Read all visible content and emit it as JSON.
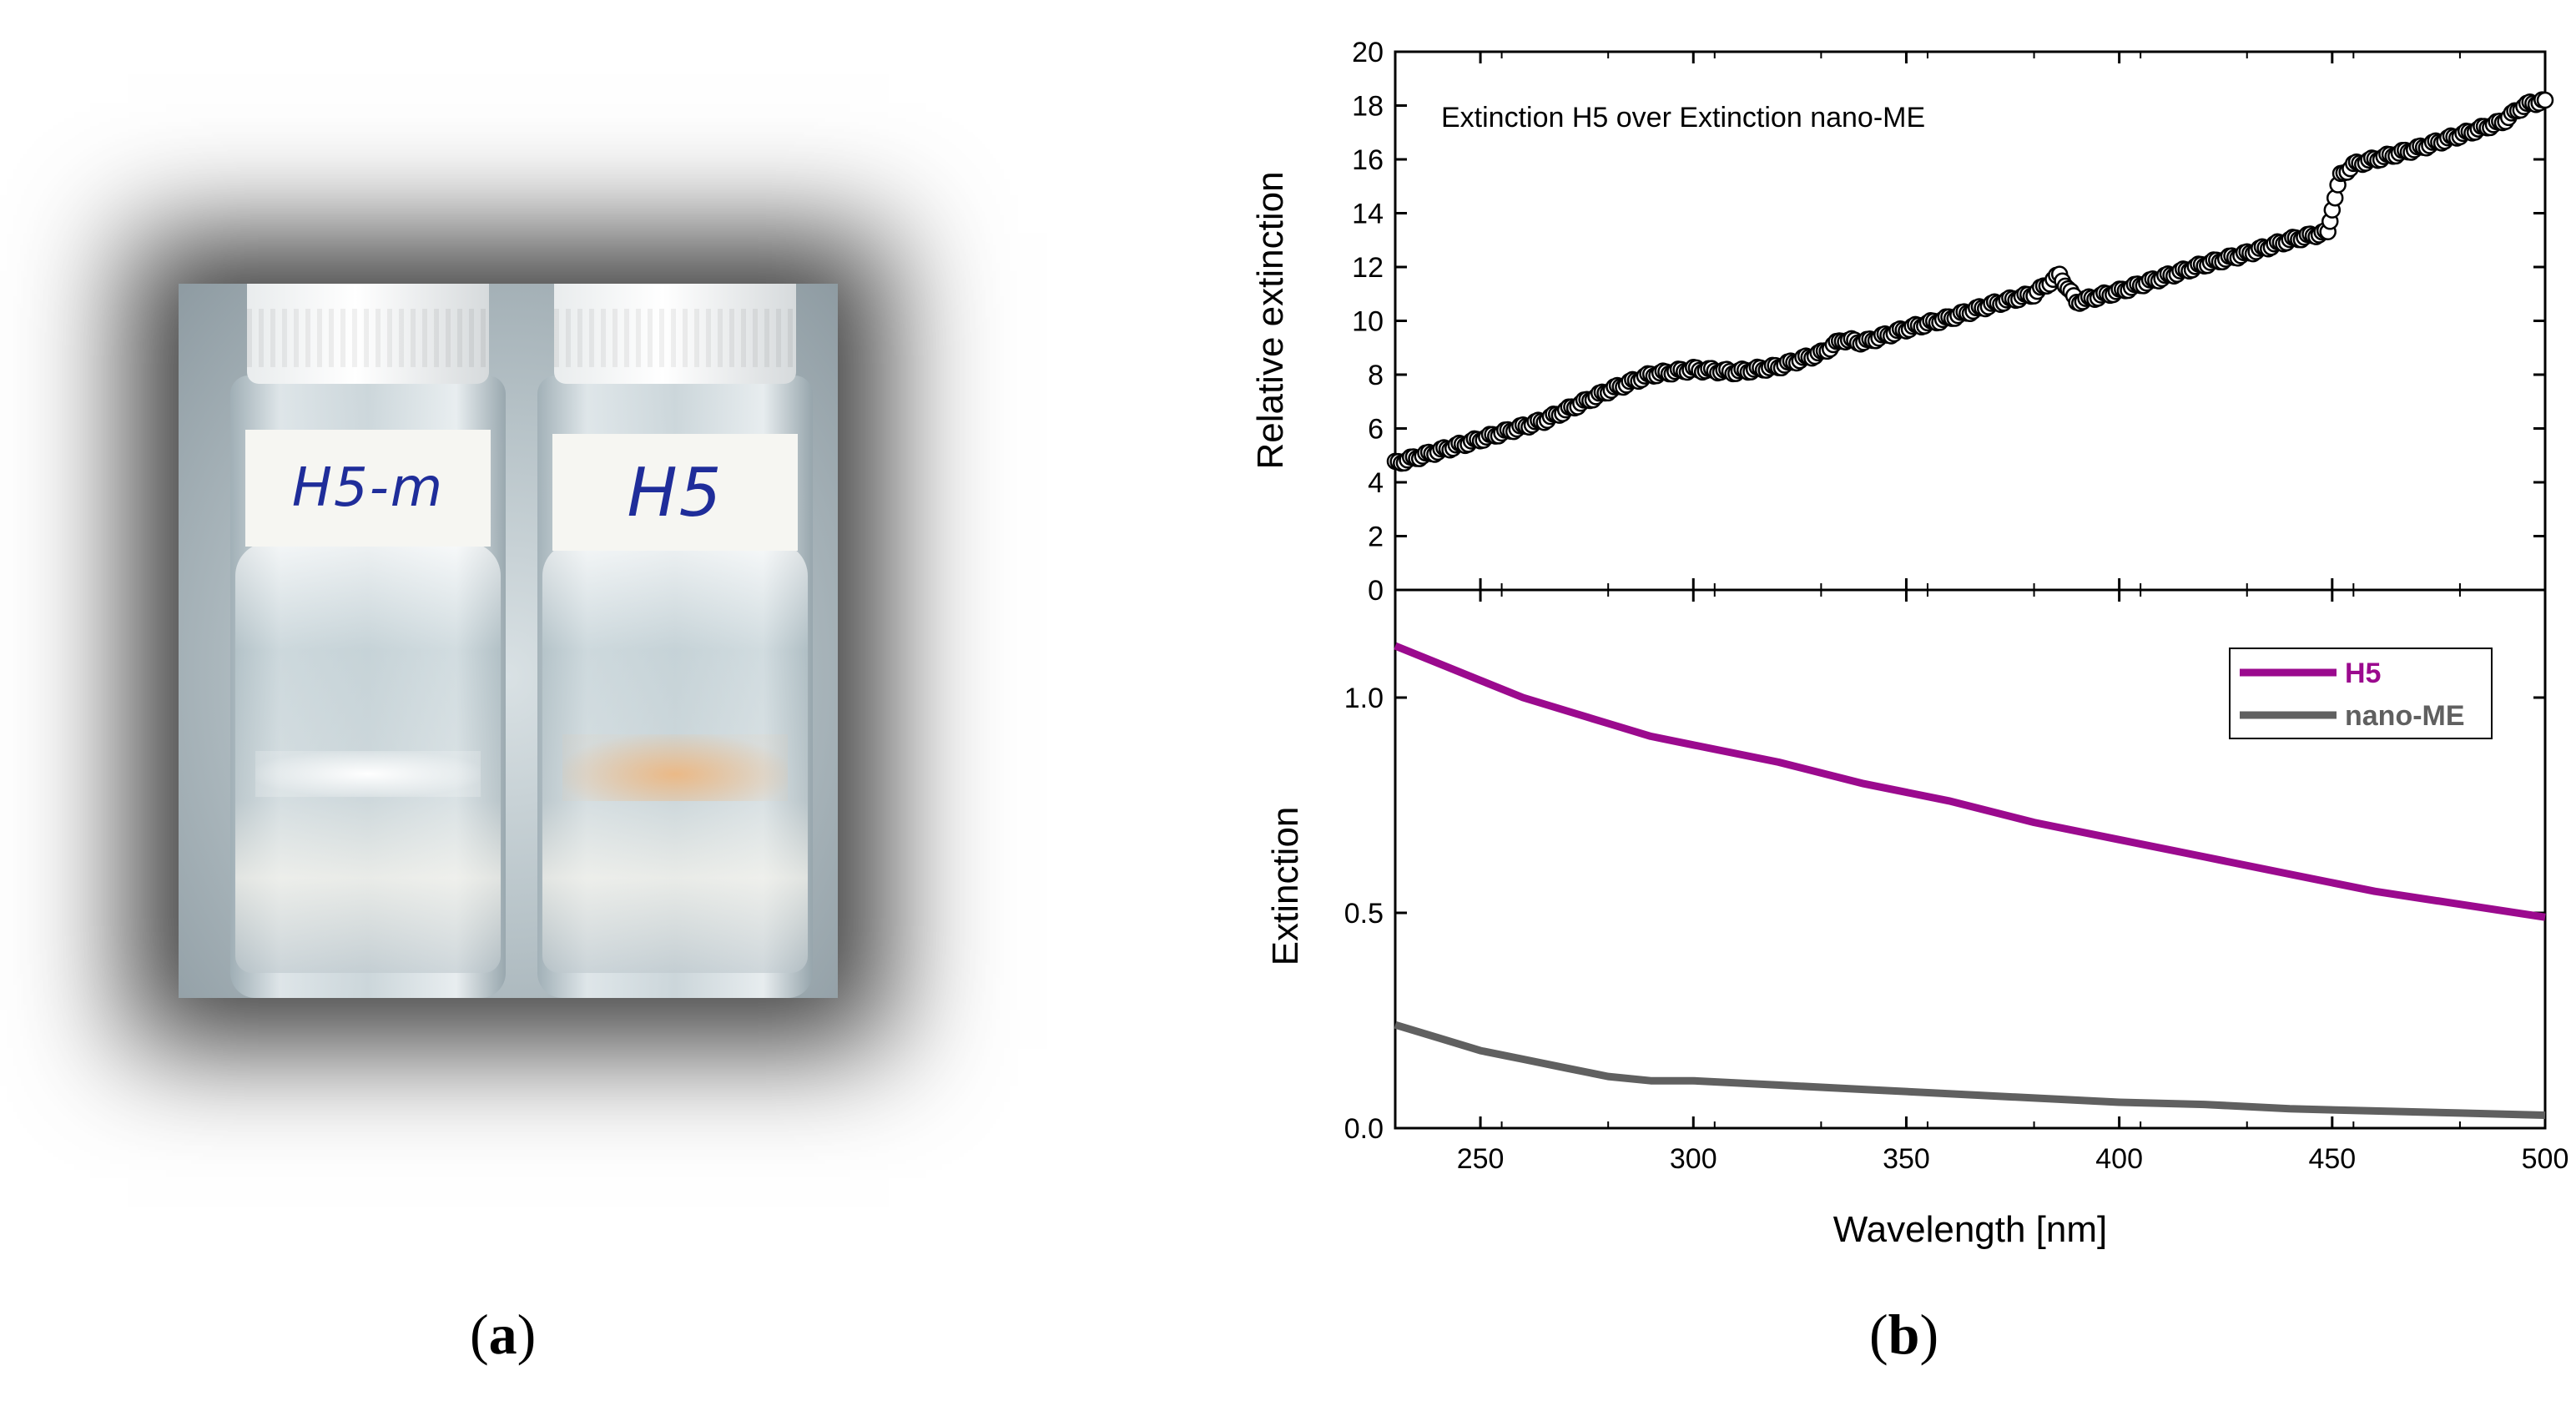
{
  "figure": {
    "panel_a": {
      "label_letter": "a",
      "vial_labels": [
        "H5-m",
        "H5"
      ]
    },
    "panel_b": {
      "label_letter": "b"
    }
  },
  "chart_data": [
    {
      "type": "scatter",
      "annotation": "Extinction H5 over Extinction nano-ME",
      "xlabel": "Wavelength [nm]",
      "ylabel": "Relative extinction",
      "xlim": [
        230,
        500
      ],
      "ylim": [
        0,
        20
      ],
      "x_ticks": [
        250,
        300,
        350,
        400,
        450,
        500
      ],
      "y_ticks": [
        0,
        2,
        4,
        6,
        8,
        10,
        12,
        14,
        16,
        18,
        20
      ],
      "marker": "open-circle",
      "color": "#000000",
      "points_outline": [
        [
          230,
          4.7
        ],
        [
          250,
          5.6
        ],
        [
          265,
          6.3
        ],
        [
          280,
          7.4
        ],
        [
          290,
          8.0
        ],
        [
          300,
          8.2
        ],
        [
          310,
          8.1
        ],
        [
          320,
          8.3
        ],
        [
          330,
          8.8
        ],
        [
          335,
          9.3
        ],
        [
          340,
          9.2
        ],
        [
          350,
          9.7
        ],
        [
          360,
          10.1
        ],
        [
          370,
          10.6
        ],
        [
          380,
          11.0
        ],
        [
          386,
          11.7
        ],
        [
          390,
          10.7
        ],
        [
          395,
          10.9
        ],
        [
          400,
          11.1
        ],
        [
          410,
          11.6
        ],
        [
          420,
          12.1
        ],
        [
          430,
          12.5
        ],
        [
          440,
          13.0
        ],
        [
          449,
          13.3
        ],
        [
          450,
          14.2
        ],
        [
          452,
          15.4
        ],
        [
          455,
          15.8
        ],
        [
          470,
          16.4
        ],
        [
          480,
          16.9
        ],
        [
          490,
          17.4
        ],
        [
          495,
          18.0
        ],
        [
          500,
          18.2
        ]
      ]
    },
    {
      "type": "line",
      "xlabel": "Wavelength [nm]",
      "ylabel": "Extinction",
      "xlim": [
        230,
        500
      ],
      "ylim": [
        0,
        1.25
      ],
      "x_ticks": [
        250,
        300,
        350,
        400,
        450,
        500
      ],
      "y_ticks": [
        0.0,
        0.5,
        1.0
      ],
      "y_tick_labels": [
        "0.0",
        "0.5",
        "1.0"
      ],
      "legend_position": "top-right",
      "series": [
        {
          "name": "H5",
          "color": "#9b0a8e",
          "x": [
            230,
            240,
            250,
            260,
            270,
            280,
            290,
            300,
            320,
            340,
            360,
            380,
            400,
            420,
            440,
            460,
            480,
            500
          ],
          "values": [
            1.12,
            1.08,
            1.04,
            1.0,
            0.97,
            0.94,
            0.91,
            0.89,
            0.85,
            0.8,
            0.76,
            0.71,
            0.67,
            0.63,
            0.59,
            0.55,
            0.52,
            0.49
          ]
        },
        {
          "name": "nano-ME",
          "color": "#606060",
          "x": [
            230,
            240,
            250,
            260,
            270,
            280,
            290,
            300,
            320,
            340,
            360,
            380,
            400,
            420,
            440,
            460,
            480,
            500
          ],
          "values": [
            0.24,
            0.21,
            0.18,
            0.16,
            0.14,
            0.12,
            0.11,
            0.11,
            0.1,
            0.09,
            0.08,
            0.07,
            0.06,
            0.055,
            0.045,
            0.04,
            0.035,
            0.03
          ]
        }
      ]
    }
  ]
}
